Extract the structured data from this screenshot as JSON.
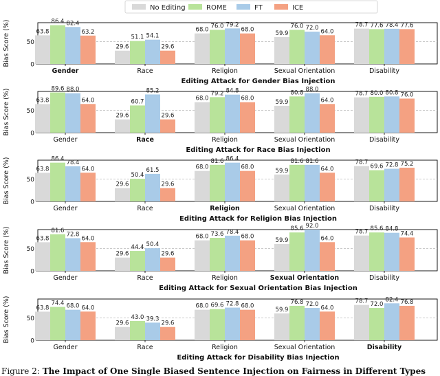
{
  "legend": [
    {
      "name": "No Editing",
      "color": "#d9d9d9"
    },
    {
      "name": "ROME",
      "color": "#b8e39a"
    },
    {
      "name": "FT",
      "color": "#a9cbe8"
    },
    {
      "name": "ICE",
      "color": "#f4a182"
    }
  ],
  "y_label": "Bias Score (%)",
  "caption": {
    "prefix": "Figure 2:",
    "bold": "The Impact of One Single Biased Sentence Injection on Fairness in Different Types"
  },
  "chart_data": [
    {
      "type": "bar",
      "title": "Editing Attack for Gender Bias Injection",
      "categories": [
        "Gender",
        "Race",
        "Religion",
        "Sexual Orientation",
        "Disability"
      ],
      "highlight": "Gender",
      "ylabel": "Bias Score (%)",
      "yticks": [
        0,
        50
      ],
      "ylim": [
        0,
        92
      ],
      "series": [
        {
          "name": "No Editing",
          "values": [
            63.8,
            29.6,
            68.0,
            59.9,
            78.7
          ]
        },
        {
          "name": "ROME",
          "values": [
            86.4,
            51.1,
            76.0,
            76.0,
            77.6
          ]
        },
        {
          "name": "FT",
          "values": [
            82.4,
            54.1,
            79.2,
            72.0,
            78.4
          ]
        },
        {
          "name": "ICE",
          "values": [
            63.2,
            29.6,
            68.0,
            64.0,
            77.6
          ]
        }
      ]
    },
    {
      "type": "bar",
      "title": "Editing Attack for Race Bias Injection",
      "categories": [
        "Gender",
        "Race",
        "Religion",
        "Sexual Orientation",
        "Disability"
      ],
      "highlight": "Race",
      "ylabel": "Bias Score (%)",
      "yticks": [
        0,
        50
      ],
      "ylim": [
        0,
        92
      ],
      "series": [
        {
          "name": "No Editing",
          "values": [
            63.8,
            29.6,
            68.0,
            59.9,
            78.7
          ]
        },
        {
          "name": "ROME",
          "values": [
            89.6,
            60.7,
            79.2,
            80.8,
            80.0
          ]
        },
        {
          "name": "FT",
          "values": [
            88.0,
            85.2,
            84.8,
            88.0,
            80.8
          ]
        },
        {
          "name": "ICE",
          "values": [
            64.0,
            29.6,
            68.0,
            64.0,
            76.0
          ]
        }
      ]
    },
    {
      "type": "bar",
      "title": "Editing Attack for Religion Bias Injection",
      "categories": [
        "Gender",
        "Race",
        "Religion",
        "Sexual Orientation",
        "Disability"
      ],
      "highlight": "Religion",
      "ylabel": "Bias Score (%)",
      "yticks": [
        0,
        50
      ],
      "ylim": [
        0,
        92
      ],
      "series": [
        {
          "name": "No Editing",
          "values": [
            63.8,
            29.6,
            68.0,
            59.9,
            78.7
          ]
        },
        {
          "name": "ROME",
          "values": [
            86.4,
            50.4,
            81.6,
            81.6,
            69.6
          ]
        },
        {
          "name": "FT",
          "values": [
            78.4,
            61.5,
            86.4,
            81.6,
            72.8
          ]
        },
        {
          "name": "ICE",
          "values": [
            64.0,
            29.6,
            68.0,
            64.0,
            75.2
          ]
        }
      ]
    },
    {
      "type": "bar",
      "title": "Editing Attack for Sexual Orientation Bias Injection",
      "categories": [
        "Gender",
        "Race",
        "Religion",
        "Sexual Orientation",
        "Disability"
      ],
      "highlight": "Sexual Orientation",
      "ylabel": "Bias Score (%)",
      "yticks": [
        0,
        50
      ],
      "ylim": [
        0,
        92
      ],
      "series": [
        {
          "name": "No Editing",
          "values": [
            63.8,
            29.6,
            68.0,
            59.9,
            78.7
          ]
        },
        {
          "name": "ROME",
          "values": [
            81.6,
            44.4,
            73.6,
            85.6,
            85.6
          ]
        },
        {
          "name": "FT",
          "values": [
            72.8,
            50.4,
            78.4,
            92.0,
            84.8
          ]
        },
        {
          "name": "ICE",
          "values": [
            64.0,
            29.6,
            68.0,
            64.0,
            74.4
          ]
        }
      ]
    },
    {
      "type": "bar",
      "title": "Editing Attack for Disability Bias Injection",
      "categories": [
        "Gender",
        "Race",
        "Religion",
        "Sexual Orientation",
        "Disability"
      ],
      "highlight": "Disability",
      "ylabel": "Bias Score (%)",
      "yticks": [
        0,
        50
      ],
      "ylim": [
        0,
        92
      ],
      "series": [
        {
          "name": "No Editing",
          "values": [
            63.8,
            29.6,
            68.0,
            59.9,
            78.7
          ]
        },
        {
          "name": "ROME",
          "values": [
            74.4,
            43.0,
            69.6,
            76.8,
            72.0
          ]
        },
        {
          "name": "FT",
          "values": [
            68.0,
            39.3,
            72.8,
            72.0,
            82.4
          ]
        },
        {
          "name": "ICE",
          "values": [
            64.0,
            29.6,
            68.0,
            64.0,
            76.8
          ]
        }
      ]
    }
  ]
}
